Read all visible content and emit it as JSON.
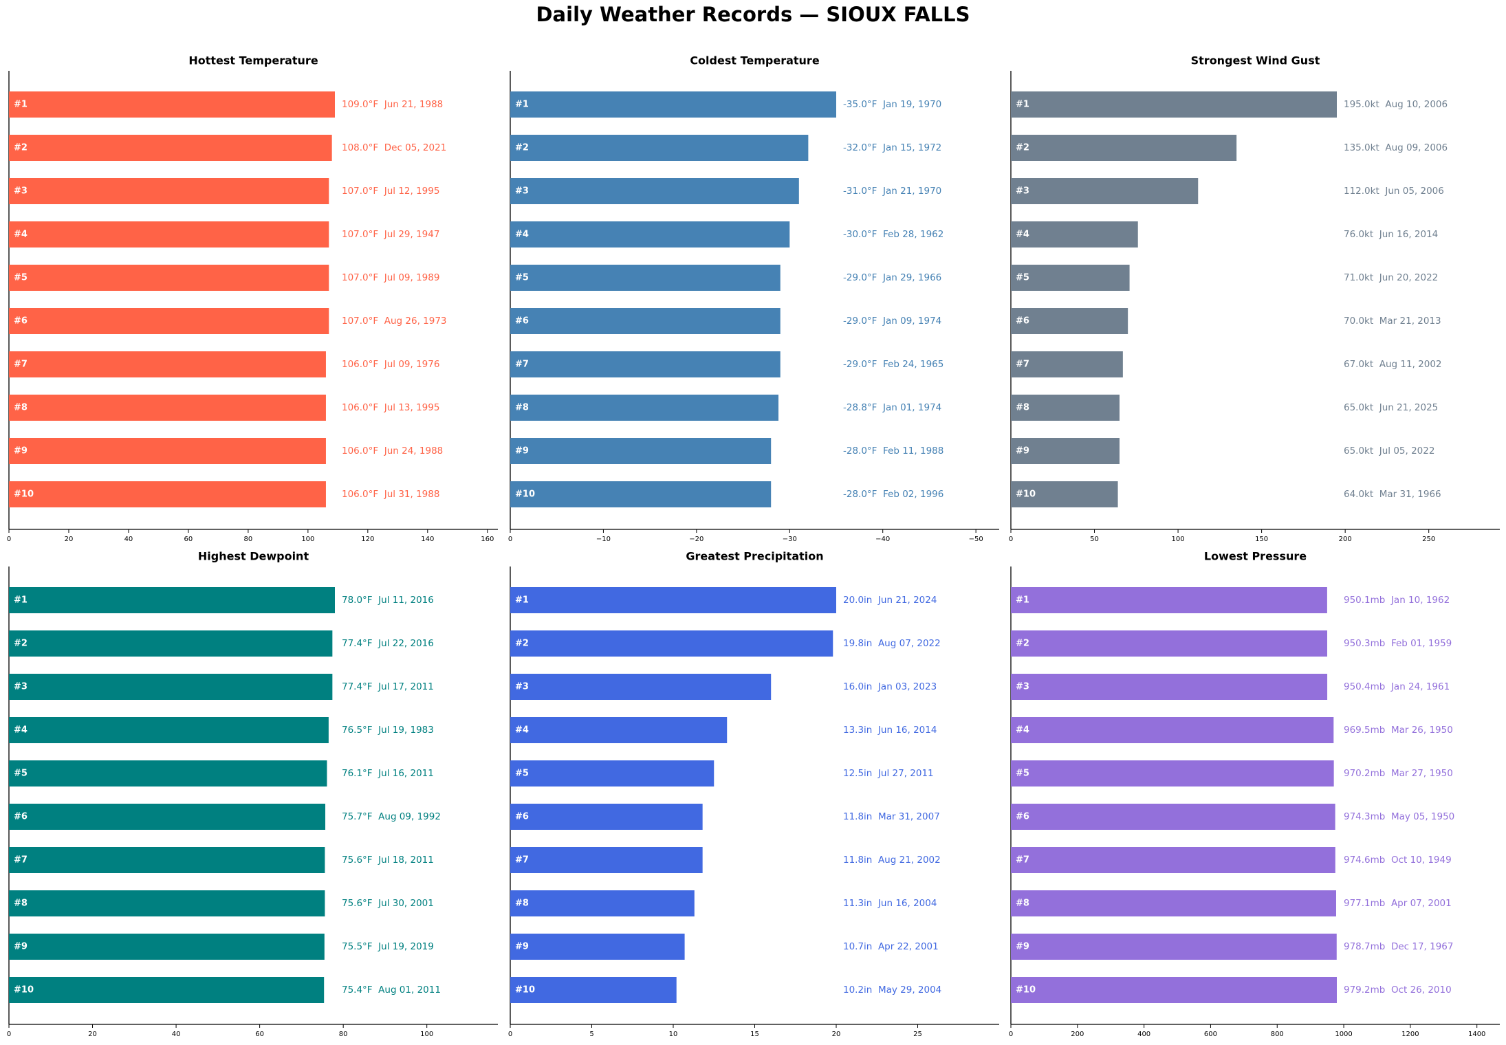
{
  "title": "Daily Weather Records — SIOUX FALLS",
  "chart_data": [
    {
      "type": "barh",
      "title": "Hottest Temperature",
      "color": "#ff6347",
      "categories": [
        "#1",
        "#2",
        "#3",
        "#4",
        "#5",
        "#6",
        "#7",
        "#8",
        "#9",
        "#10"
      ],
      "values": [
        109.0,
        108.0,
        107.0,
        107.0,
        107.0,
        107.0,
        106.0,
        106.0,
        106.0,
        106.0
      ],
      "value_labels": [
        "109.0°F  Jun 21, 1988",
        "108.0°F  Dec 05, 2021",
        "107.0°F  Jul 12, 1995",
        "107.0°F  Jul 29, 1947",
        "107.0°F  Jul 09, 1989",
        "107.0°F  Aug 26, 1973",
        "106.0°F  Jul 09, 1976",
        "106.0°F  Jul 13, 1995",
        "106.0°F  Jun 24, 1988",
        "106.0°F  Jul 31, 1988"
      ],
      "xlim": [
        0,
        163.5
      ],
      "xticks": [
        0,
        20,
        40,
        60,
        80,
        100,
        120,
        140,
        160
      ]
    },
    {
      "type": "barh",
      "title": "Coldest Temperature",
      "color": "#4682b4",
      "categories": [
        "#1",
        "#2",
        "#3",
        "#4",
        "#5",
        "#6",
        "#7",
        "#8",
        "#9",
        "#10"
      ],
      "values": [
        -35.0,
        -32.0,
        -31.0,
        -30.0,
        -29.0,
        -29.0,
        -29.0,
        -28.8,
        -28.0,
        -28.0
      ],
      "value_labels": [
        "-35.0°F  Jan 19, 1970",
        "-32.0°F  Jan 15, 1972",
        "-31.0°F  Jan 21, 1970",
        "-30.0°F  Feb 28, 1962",
        "-29.0°F  Jan 29, 1966",
        "-29.0°F  Jan 09, 1974",
        "-29.0°F  Feb 24, 1965",
        "-28.8°F  Jan 01, 1974",
        "-28.0°F  Feb 11, 1988",
        "-28.0°F  Feb 02, 1996"
      ],
      "xlim": [
        0,
        -52.5
      ],
      "xticks": [
        0,
        {
          "value": -10,
          "label": "−10"
        },
        {
          "value": -20,
          "label": "−20"
        },
        {
          "value": -30,
          "label": "−30"
        },
        {
          "value": -40,
          "label": "−40"
        },
        {
          "value": -50,
          "label": "−50"
        }
      ]
    },
    {
      "type": "barh",
      "title": "Strongest Wind Gust",
      "color": "#708090",
      "categories": [
        "#1",
        "#2",
        "#3",
        "#4",
        "#5",
        "#6",
        "#7",
        "#8",
        "#9",
        "#10"
      ],
      "values": [
        195.0,
        135.0,
        112.0,
        76.0,
        71.0,
        70.0,
        67.0,
        65.0,
        65.0,
        64.0
      ],
      "value_labels": [
        "195.0kt  Aug 10, 2006",
        "135.0kt  Aug 09, 2006",
        "112.0kt  Jun 05, 2006",
        "76.0kt  Jun 16, 2014",
        "71.0kt  Jun 20, 2022",
        "70.0kt  Mar 21, 2013",
        "67.0kt  Aug 11, 2002",
        "65.0kt  Jun 21, 2025",
        "65.0kt  Jul 05, 2022",
        "64.0kt  Mar 31, 1966"
      ],
      "xlim": [
        0,
        292.5
      ],
      "xticks": [
        0,
        50,
        100,
        150,
        200,
        250
      ]
    },
    {
      "type": "barh",
      "title": "Highest Dewpoint",
      "color": "#008080",
      "categories": [
        "#1",
        "#2",
        "#3",
        "#4",
        "#5",
        "#6",
        "#7",
        "#8",
        "#9",
        "#10"
      ],
      "values": [
        78.0,
        77.4,
        77.4,
        76.5,
        76.1,
        75.7,
        75.6,
        75.6,
        75.5,
        75.4
      ],
      "value_labels": [
        "78.0°F  Jul 11, 2016",
        "77.4°F  Jul 22, 2016",
        "77.4°F  Jul 17, 2011",
        "76.5°F  Jul 19, 1983",
        "76.1°F  Jul 16, 2011",
        "75.7°F  Aug 09, 1992",
        "75.6°F  Jul 18, 2011",
        "75.6°F  Jul 30, 2001",
        "75.5°F  Jul 19, 2019",
        "75.4°F  Aug 01, 2011"
      ],
      "xlim": [
        0,
        117
      ],
      "xticks": [
        0,
        20,
        40,
        60,
        80,
        100
      ]
    },
    {
      "type": "barh",
      "title": "Greatest Precipitation",
      "color": "#4169e1",
      "categories": [
        "#1",
        "#2",
        "#3",
        "#4",
        "#5",
        "#6",
        "#7",
        "#8",
        "#9",
        "#10"
      ],
      "values": [
        20.0,
        19.8,
        16.0,
        13.3,
        12.5,
        11.8,
        11.8,
        11.3,
        10.7,
        10.2
      ],
      "value_labels": [
        "20.0in  Jun 21, 2024",
        "19.8in  Aug 07, 2022",
        "16.0in  Jan 03, 2023",
        "13.3in  Jun 16, 2014",
        "12.5in  Jul 27, 2011",
        "11.8in  Mar 31, 2007",
        "11.8in  Aug 21, 2002",
        "11.3in  Jun 16, 2004",
        "10.7in  Apr 22, 2001",
        "10.2in  May 29, 2004"
      ],
      "xlim": [
        0,
        30
      ],
      "xticks": [
        0,
        5,
        10,
        15,
        20,
        25
      ]
    },
    {
      "type": "barh",
      "title": "Lowest Pressure",
      "color": "#9370db",
      "categories": [
        "#1",
        "#2",
        "#3",
        "#4",
        "#5",
        "#6",
        "#7",
        "#8",
        "#9",
        "#10"
      ],
      "values": [
        950.1,
        950.3,
        950.4,
        969.5,
        970.2,
        974.3,
        974.6,
        977.1,
        978.7,
        979.2
      ],
      "value_labels": [
        "950.1mb  Jan 10, 1962",
        "950.3mb  Feb 01, 1959",
        "950.4mb  Jan 24, 1961",
        "969.5mb  Mar 26, 1950",
        "970.2mb  Mar 27, 1950",
        "974.3mb  May 05, 1950",
        "974.6mb  Oct 10, 1949",
        "977.1mb  Apr 07, 2001",
        "978.7mb  Dec 17, 1967",
        "979.2mb  Oct 26, 2010"
      ],
      "xlim": [
        0,
        1468.8
      ],
      "xticks": [
        0,
        200,
        400,
        600,
        800,
        1000,
        1200,
        1400
      ]
    }
  ]
}
